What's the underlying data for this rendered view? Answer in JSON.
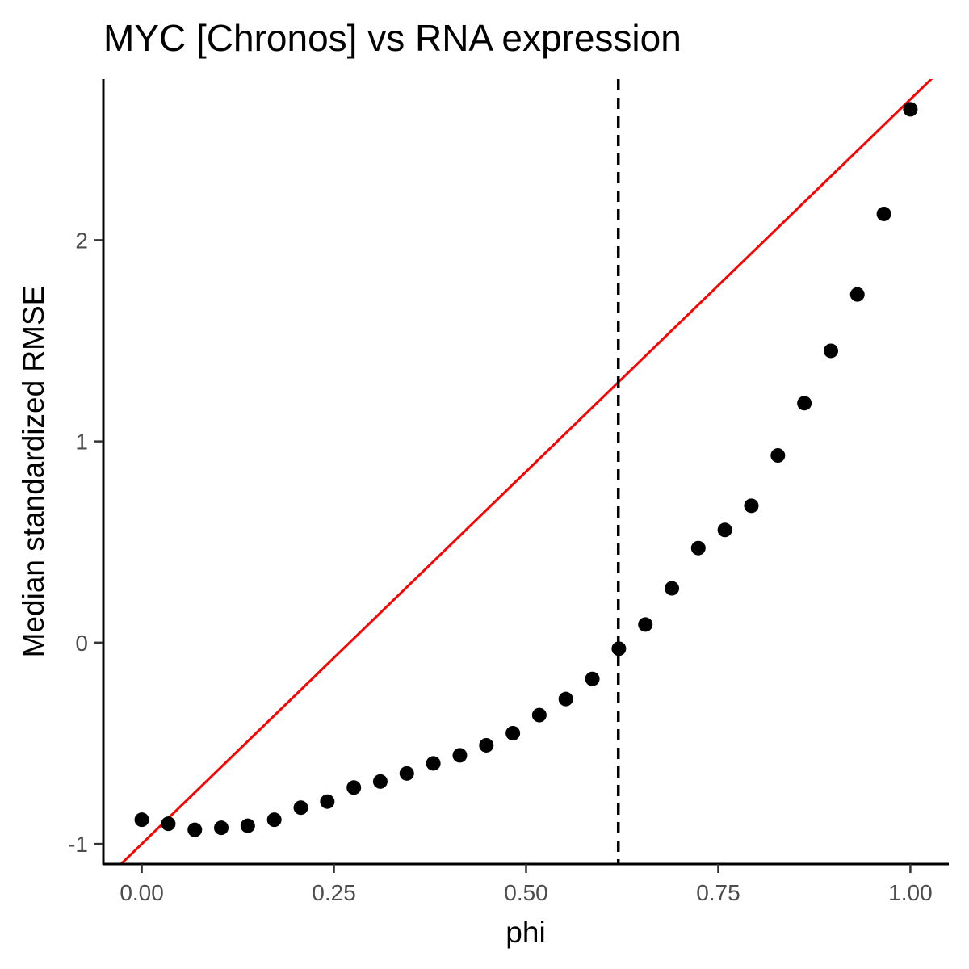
{
  "chart_data": {
    "type": "scatter",
    "title": "MYC [Chronos] vs RNA expression",
    "xlabel": "phi",
    "ylabel": "Median standardized RMSE",
    "xlim": [
      -0.05,
      1.05
    ],
    "ylim": [
      -1.1,
      2.8
    ],
    "x_ticks": [
      0.0,
      0.25,
      0.5,
      0.75,
      1.0
    ],
    "x_tick_labels": [
      "0.00",
      "0.25",
      "0.50",
      "0.75",
      "1.00"
    ],
    "y_ticks": [
      -1,
      0,
      1,
      2
    ],
    "y_tick_labels": [
      "-1",
      "0",
      "1",
      "2"
    ],
    "grid": false,
    "legend": "none",
    "point_color": "#000000",
    "series": [
      {
        "x": [
          0.0,
          0.0345,
          0.069,
          0.1034,
          0.1379,
          0.1724,
          0.2069,
          0.2414,
          0.2759,
          0.3103,
          0.3448,
          0.3793,
          0.4138,
          0.4483,
          0.4828,
          0.5172,
          0.5517,
          0.5862,
          0.6207,
          0.6552,
          0.6897,
          0.7241,
          0.7586,
          0.7931,
          0.8276,
          0.8621,
          0.8966,
          0.931,
          0.9655,
          1.0
        ],
        "y": [
          -0.88,
          -0.9,
          -0.93,
          -0.92,
          -0.91,
          -0.88,
          -0.82,
          -0.79,
          -0.72,
          -0.69,
          -0.65,
          -0.6,
          -0.56,
          -0.51,
          -0.45,
          -0.36,
          -0.28,
          -0.18,
          -0.03,
          0.09,
          0.27,
          0.47,
          0.56,
          0.68,
          0.93,
          1.19,
          1.45,
          1.73,
          2.13,
          2.65
        ]
      }
    ],
    "reference_line": {
      "intercept": -1.0,
      "slope": 3.7,
      "color": "#ff0000"
    },
    "vline": {
      "x": 0.62,
      "style": "dashed",
      "color": "#000000"
    }
  }
}
